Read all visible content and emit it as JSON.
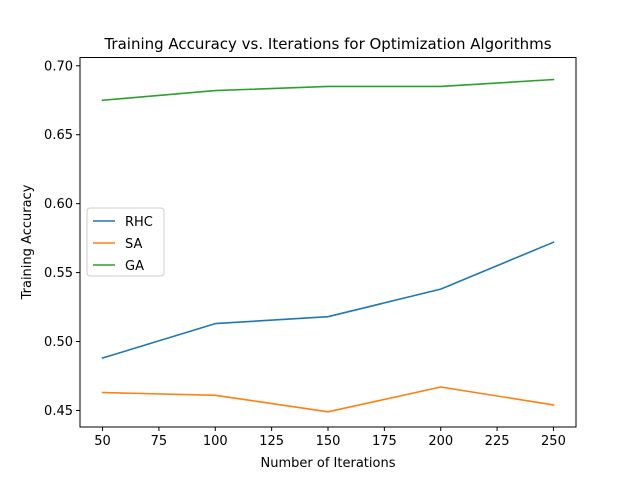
{
  "chart_data": {
    "type": "line",
    "title": "Training Accuracy vs. Iterations for Optimization Algorithms",
    "xlabel": "Number of Iterations",
    "ylabel": "Training Accuracy",
    "x": [
      50,
      100,
      150,
      200,
      250
    ],
    "xlim": [
      40,
      260
    ],
    "ylim": [
      0.438,
      0.706
    ],
    "xticks": [
      50,
      75,
      100,
      125,
      150,
      175,
      200,
      225,
      250
    ],
    "yticks": [
      0.45,
      0.5,
      0.55,
      0.6,
      0.65,
      0.7
    ],
    "xtick_labels": [
      "50",
      "75",
      "100",
      "125",
      "150",
      "175",
      "200",
      "225",
      "250"
    ],
    "ytick_labels": [
      "0.45",
      "0.50",
      "0.55",
      "0.60",
      "0.65",
      "0.70"
    ],
    "grid": false,
    "legend": "center-left",
    "series": [
      {
        "name": "RHC",
        "color": "#1f77b4",
        "values": [
          0.488,
          0.513,
          0.518,
          0.538,
          0.572
        ]
      },
      {
        "name": "SA",
        "color": "#ff7f0e",
        "values": [
          0.463,
          0.461,
          0.449,
          0.467,
          0.454
        ]
      },
      {
        "name": "GA",
        "color": "#2ca02c",
        "values": [
          0.675,
          0.682,
          0.685,
          0.685,
          0.69
        ]
      }
    ]
  }
}
